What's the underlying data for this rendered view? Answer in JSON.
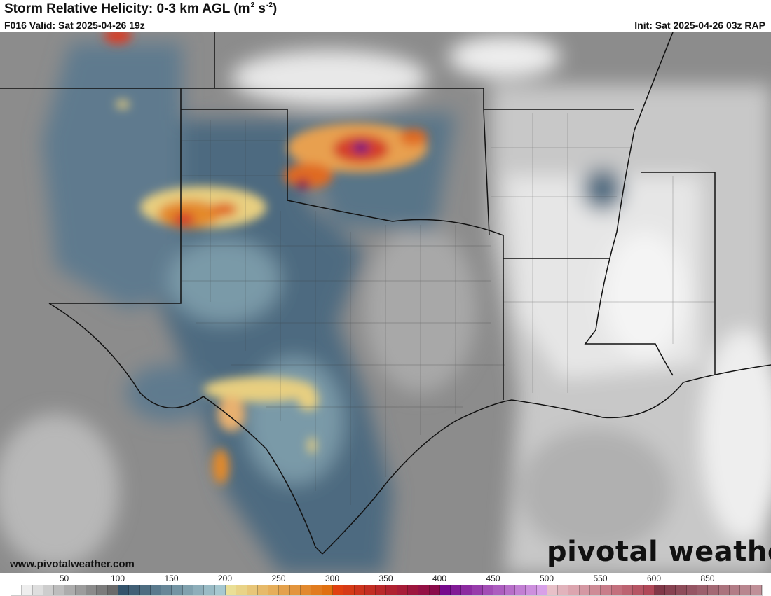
{
  "header": {
    "title": "Storm Relative Helicity: 0-3 km AGL (m",
    "title_sup1": "2",
    "title_mid": " s",
    "title_sup2": "-2",
    "title_end": ")",
    "valid": "F016 Valid: Sat 2025-04-26 19z",
    "init": "Init: Sat 2025-04-26 03z RAP"
  },
  "footer": {
    "website": "www.pivotalweather.com",
    "logo": "pivotal weather"
  },
  "colorbar": {
    "units_per_box": 10,
    "box_count": 70,
    "ticks": [
      "50",
      "100",
      "150",
      "200",
      "250",
      "300",
      "350",
      "400",
      "450",
      "500",
      "550",
      "600",
      "850"
    ],
    "anchors": [
      "#ffffff",
      "#6a6a6a",
      "#34536b",
      "#a6c8d0",
      "#eadf96",
      "#e07010",
      "#e04010",
      "#8a0a4a",
      "#760a8c",
      "#d8a0e8",
      "#e8c0c8",
      "#b04858",
      "#803848",
      "#c09098"
    ]
  },
  "map": {
    "colors": {
      "base": "#8c8c8c",
      "light": "#d6d6d6",
      "white": "#f2f2f2",
      "blue": "#4e6a80",
      "teal": "#7a9aa8",
      "yellow": "#e8cf80",
      "orange": "#e48a2a",
      "red": "#d4402a",
      "purple": "#6a1480"
    }
  }
}
